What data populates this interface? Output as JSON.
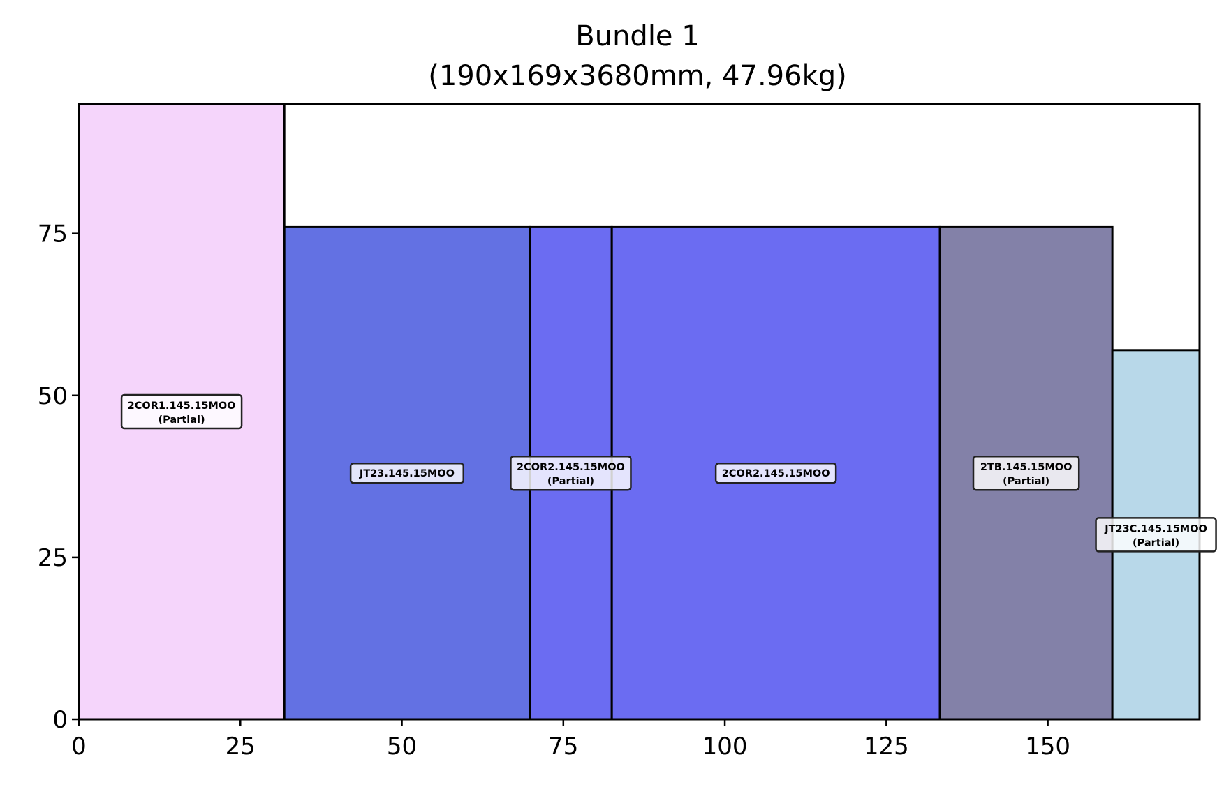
{
  "chart_data": {
    "type": "bar",
    "title": "Bundle 1",
    "subtitle": "(190x169x3680mm, 47.96kg)",
    "xlabel": "",
    "ylabel": "",
    "xlim": [
      0,
      173.5
    ],
    "ylim": [
      0,
      95
    ],
    "grid": false,
    "x_ticks": [
      {
        "value": 0,
        "label": "0"
      },
      {
        "value": 25,
        "label": "25"
      },
      {
        "value": 50,
        "label": "50"
      },
      {
        "value": 75,
        "label": "75"
      },
      {
        "value": 100,
        "label": "100"
      },
      {
        "value": 125,
        "label": "125"
      },
      {
        "value": 150,
        "label": "150"
      }
    ],
    "y_ticks": [
      {
        "value": 0,
        "label": "0"
      },
      {
        "value": 25,
        "label": "25"
      },
      {
        "value": 50,
        "label": "50"
      },
      {
        "value": 75,
        "label": "75"
      }
    ],
    "pieces": [
      {
        "x0": 0,
        "x1": 31.8,
        "height": 95,
        "color": "#f5d5fb",
        "label": "2COR1.145.15MOO",
        "sublabel": "(Partial)",
        "label_y": 47.5
      },
      {
        "x0": 31.8,
        "x1": 69.8,
        "height": 76,
        "color": "#6371e3",
        "label": "JT23.145.15MOO",
        "sublabel": "",
        "label_y": 38
      },
      {
        "x0": 69.8,
        "x1": 82.5,
        "height": 76,
        "color": "#6b6cf2",
        "label": "2COR2.145.15MOO",
        "sublabel": "(Partial)",
        "label_y": 38
      },
      {
        "x0": 82.5,
        "x1": 133.3,
        "height": 76,
        "color": "#6b6cf2",
        "label": "2COR2.145.15MOO",
        "sublabel": "",
        "label_y": 38
      },
      {
        "x0": 133.3,
        "x1": 160,
        "height": 76,
        "color": "#8381a8",
        "label": "2TB.145.15MOO",
        "sublabel": "(Partial)",
        "label_y": 38
      },
      {
        "x0": 160,
        "x1": 173.5,
        "height": 57,
        "color": "#b8d8e9",
        "label": "JT23C.145.15MOO",
        "sublabel": "(Partial)",
        "label_y": 28.5
      }
    ]
  }
}
